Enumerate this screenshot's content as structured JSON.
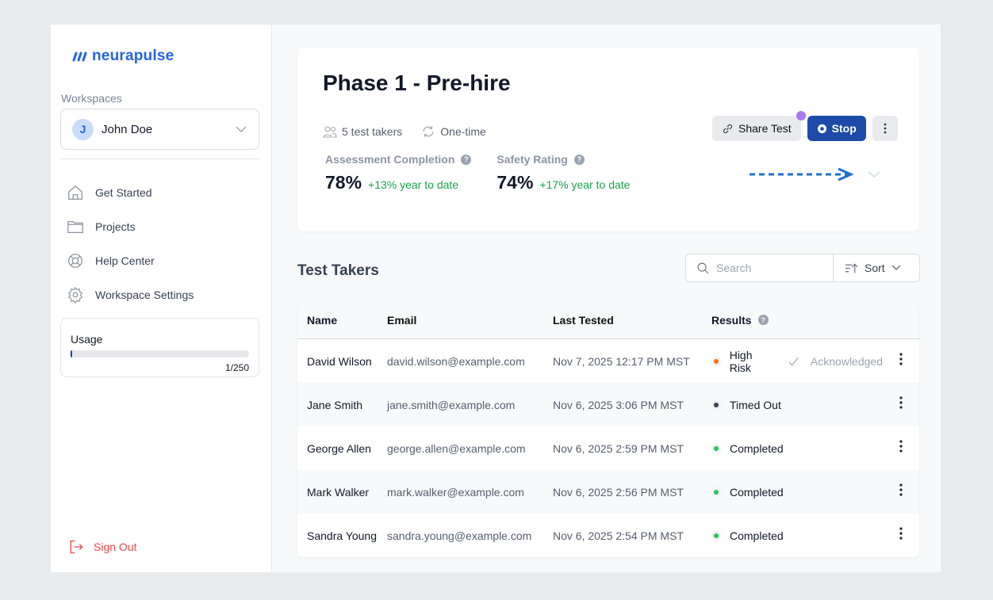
{
  "brand": {
    "name": "neurapulse",
    "color": "#2563eb"
  },
  "sidebar": {
    "workspaces_label": "Workspaces",
    "workspace": {
      "initial": "J",
      "name": "John Doe"
    },
    "items": [
      {
        "label": "Get Started",
        "icon": "home-icon"
      },
      {
        "label": "Projects",
        "icon": "folder-icon"
      },
      {
        "label": "Help Center",
        "icon": "lifebuoy-icon"
      },
      {
        "label": "Workspace Settings",
        "icon": "gear-icon"
      }
    ],
    "usage": {
      "label": "Usage",
      "count": "1/250",
      "fraction": 0.004
    },
    "sign_out": "Sign Out"
  },
  "header": {
    "title": "Phase 1 - Pre-hire",
    "test_takers": "5 test takers",
    "frequency": "One-time",
    "share_label": "Share Test",
    "stop_label": "Stop",
    "stats": [
      {
        "label": "Assessment Completion",
        "value": "78%",
        "delta": "+13% year to date"
      },
      {
        "label": "Safety Rating",
        "value": "74%",
        "delta": "+17% year to date"
      }
    ]
  },
  "test_takers": {
    "title": "Test Takers",
    "search_placeholder": "Search",
    "sort_label": "Sort",
    "columns": [
      "Name",
      "Email",
      "Last Tested",
      "Results"
    ],
    "rows": [
      {
        "name": "David Wilson",
        "email": "david.wilson@example.com",
        "last": "Nov 7, 2025 12:17 PM MST",
        "result": "High Risk",
        "color": "#f97316",
        "ack": "Acknowledged"
      },
      {
        "name": "Jane Smith",
        "email": "jane.smith@example.com",
        "last": "Nov 6, 2025 3:06 PM MST",
        "result": "Timed Out",
        "color": "#374151"
      },
      {
        "name": "George Allen",
        "email": "george.allen@example.com",
        "last": "Nov 6, 2025 2:59 PM MST",
        "result": "Completed",
        "color": "#22c55e"
      },
      {
        "name": "Mark Walker",
        "email": "mark.walker@example.com",
        "last": "Nov 6, 2025 2:56 PM MST",
        "result": "Completed",
        "color": "#22c55e"
      },
      {
        "name": "Sandra Young",
        "email": "sandra.young@example.com",
        "last": "Nov 6, 2025 2:54 PM MST",
        "result": "Completed",
        "color": "#22c55e"
      }
    ]
  }
}
